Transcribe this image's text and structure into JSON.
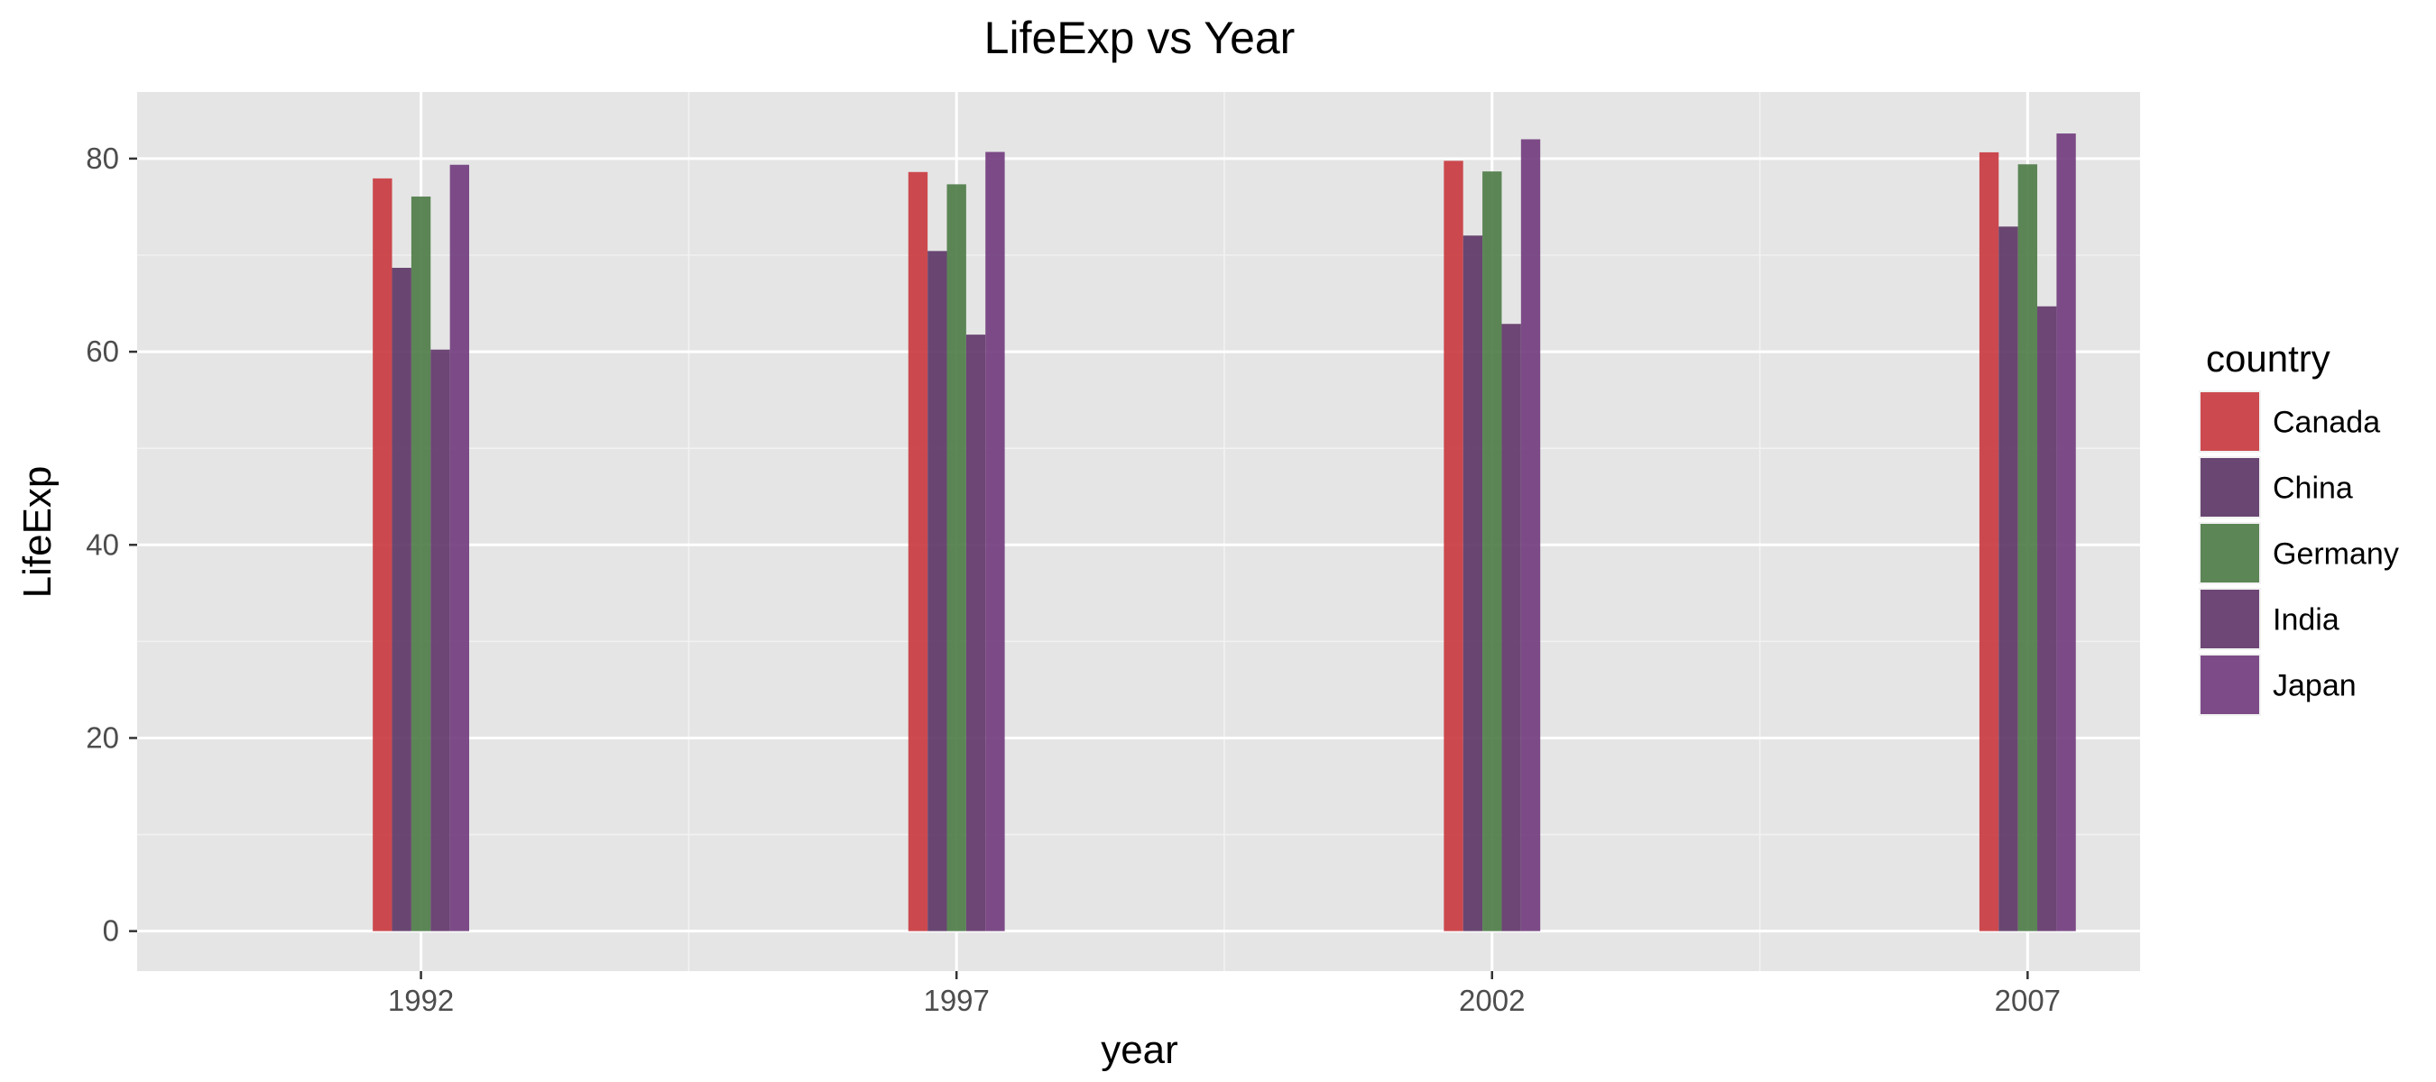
{
  "chart_data": {
    "type": "bar",
    "title": "LifeExp vs Year",
    "xlabel": "year",
    "ylabel": "LifeExp",
    "categories": [
      "1992",
      "1997",
      "2002",
      "2007"
    ],
    "x_values": [
      1992,
      1997,
      2002,
      2007
    ],
    "xlim": [
      1989.35,
      2008.05
    ],
    "ylim": [
      -4.14,
      86.9
    ],
    "yticks": [
      0,
      20,
      40,
      60,
      80
    ],
    "grid": true,
    "legend_title": "country",
    "legend_position": "right",
    "series": [
      {
        "name": "Canada",
        "color": "#c8373d",
        "values": [
          77.95,
          78.61,
          79.77,
          80.65
        ]
      },
      {
        "name": "China",
        "color": "#5b3464",
        "values": [
          68.69,
          70.43,
          72.03,
          72.96
        ]
      },
      {
        "name": "Germany",
        "color": "#4b7a45",
        "values": [
          76.07,
          77.34,
          78.67,
          79.41
        ]
      },
      {
        "name": "India",
        "color": "#5f3468",
        "values": [
          60.22,
          61.77,
          62.88,
          64.7
        ]
      },
      {
        "name": "Japan",
        "color": "#703a7c",
        "values": [
          79.36,
          80.69,
          82.0,
          82.6
        ]
      }
    ]
  }
}
